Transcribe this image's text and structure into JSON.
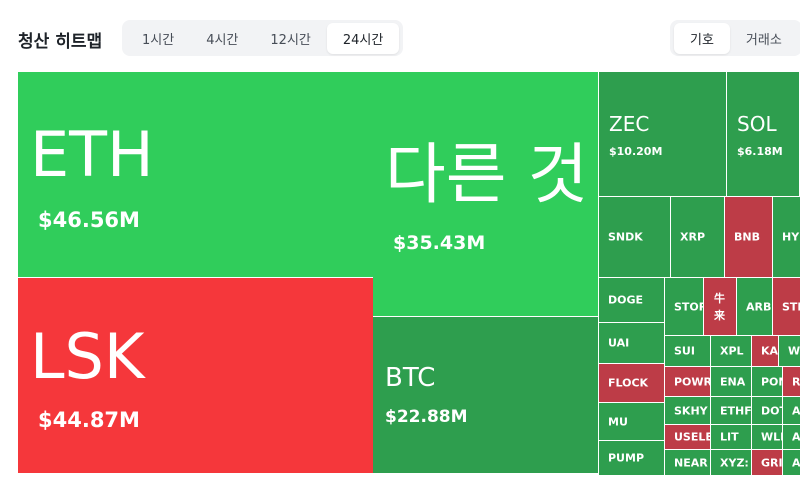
{
  "header": {
    "title": "청산 히트맵",
    "time_tabs": [
      "1시간",
      "4시간",
      "12시간",
      "24시간"
    ],
    "active_time_tab": 3,
    "view_tabs": [
      "기호",
      "거래소"
    ],
    "active_view_tab": 0
  },
  "heatmap": {
    "tiles": [
      {
        "label": "ETH",
        "value": "$46.56M",
        "color": "#30cd5b"
      },
      {
        "label": "LSK",
        "value": "$44.87M",
        "color": "#f5373b"
      },
      {
        "label": "다른 것",
        "value": "$35.43M",
        "color": "#30cd5b"
      },
      {
        "label": "BTC",
        "value": "$22.88M",
        "color": "#2e9e4e"
      },
      {
        "label": "ZEC",
        "value": "$10.20M",
        "color": "#2e9e4e"
      },
      {
        "label": "SOL",
        "value": "$6.18M",
        "color": "#2e9e4e"
      },
      {
        "label": "SNDK",
        "color": "#2e9e4e"
      },
      {
        "label": "XRP",
        "color": "#2e9e4e"
      },
      {
        "label": "BNB",
        "color": "#bd3c47"
      },
      {
        "label": "HYPE",
        "color": "#2e9e4e"
      },
      {
        "label": "DOGE",
        "color": "#2e9e4e"
      },
      {
        "label": "STORJ",
        "color": "#2e9e4e"
      },
      {
        "label": "牛来",
        "color": "#bd3c47"
      },
      {
        "label": "ARB",
        "color": "#2e9e4e"
      },
      {
        "label": "STEEM",
        "color": "#bd3c47"
      },
      {
        "label": "UAI",
        "color": "#2e9e4e"
      },
      {
        "label": "SUI",
        "color": "#2e9e4e"
      },
      {
        "label": "XPL",
        "color": "#2e9e4e"
      },
      {
        "label": "KAITO",
        "color": "#bd3c47"
      },
      {
        "label": "WLD",
        "color": "#2e9e4e"
      },
      {
        "label": "FLOCK",
        "color": "#bd3c47"
      },
      {
        "label": "POWR",
        "color": "#bd3c47"
      },
      {
        "label": "ENA",
        "color": "#2e9e4e"
      },
      {
        "label": "PONKE",
        "color": "#2e9e4e"
      },
      {
        "label": "R",
        "color": "#bd3c47"
      },
      {
        "label": "MU",
        "color": "#2e9e4e"
      },
      {
        "label": "SKHY",
        "color": "#2e9e4e"
      },
      {
        "label": "ETHFI",
        "color": "#2e9e4e"
      },
      {
        "label": "DOT",
        "color": "#2e9e4e"
      },
      {
        "label": "A",
        "color": "#2e9e4e"
      },
      {
        "label": "USELESS",
        "color": "#bd3c47"
      },
      {
        "label": "LIT",
        "color": "#2e9e4e"
      },
      {
        "label": "WLFI",
        "color": "#2e9e4e"
      },
      {
        "label": "A",
        "color": "#2e9e4e"
      },
      {
        "label": "PUMP",
        "color": "#2e9e4e"
      },
      {
        "label": "NEAR",
        "color": "#2e9e4e"
      },
      {
        "label": "XYZ:",
        "color": "#2e9e4e"
      },
      {
        "label": "GRI",
        "color": "#bd3c47"
      },
      {
        "label": "A",
        "color": "#2e9e4e"
      }
    ]
  }
}
